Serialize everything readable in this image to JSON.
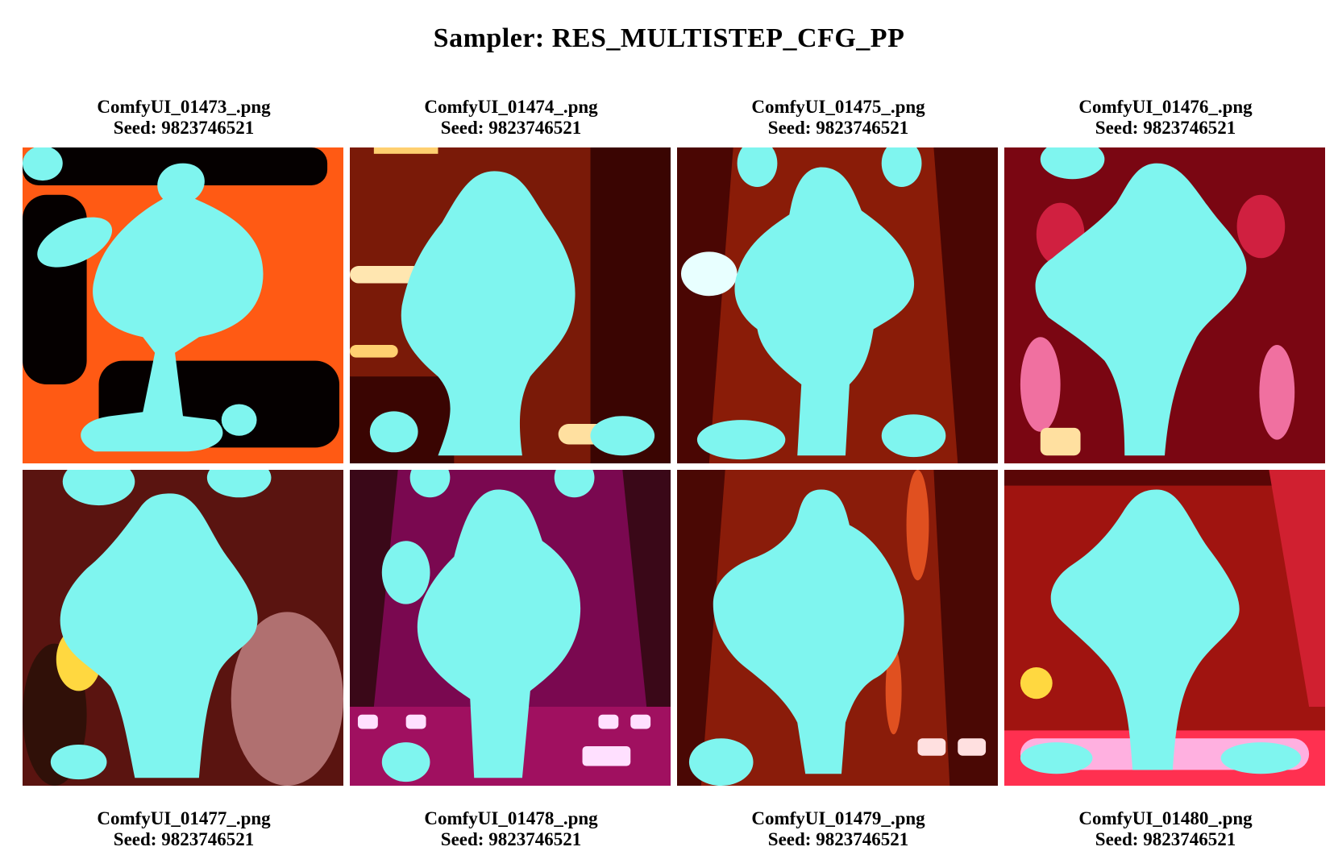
{
  "title": "Sampler: RES_MULTISTEP_CFG_PP",
  "images": [
    {
      "filename": "ComfyUI_01473_.png",
      "seed": "Seed: 9823746521",
      "colors": {
        "bg": "#ff5a14",
        "dark": "#050000",
        "blob": "#7ff5ef"
      }
    },
    {
      "filename": "ComfyUI_01474_.png",
      "seed": "Seed: 9823746521",
      "colors": {
        "bg": "#7a1a08",
        "dark": "#3a0502",
        "blob": "#7ff5ef"
      }
    },
    {
      "filename": "ComfyUI_01475_.png",
      "seed": "Seed: 9823746521",
      "colors": {
        "bg": "#8a1c08",
        "dark": "#4a0603",
        "blob": "#7ff5ef"
      }
    },
    {
      "filename": "ComfyUI_01476_.png",
      "seed": "Seed: 9823746521",
      "colors": {
        "bg": "#7a0612",
        "dark": "#3a0208",
        "blob": "#7ff5ef"
      }
    },
    {
      "filename": "ComfyUI_01477_.png",
      "seed": "Seed: 9823746521",
      "colors": {
        "bg": "#5a1410",
        "dark": "#250404",
        "blob": "#7ff5ef"
      }
    },
    {
      "filename": "ComfyUI_01478_.png",
      "seed": "Seed: 9823746521",
      "colors": {
        "bg": "#7a0850",
        "dark": "#300418",
        "blob": "#7ff5ef"
      }
    },
    {
      "filename": "ComfyUI_01479_.png",
      "seed": "Seed: 9823746521",
      "colors": {
        "bg": "#8a1c0a",
        "dark": "#4a0804",
        "blob": "#7ff5ef"
      }
    },
    {
      "filename": "ComfyUI_01480_.png",
      "seed": "Seed: 9823746521",
      "colors": {
        "bg": "#a01410",
        "dark": "#5a0606",
        "blob": "#7ff5ef"
      }
    }
  ]
}
